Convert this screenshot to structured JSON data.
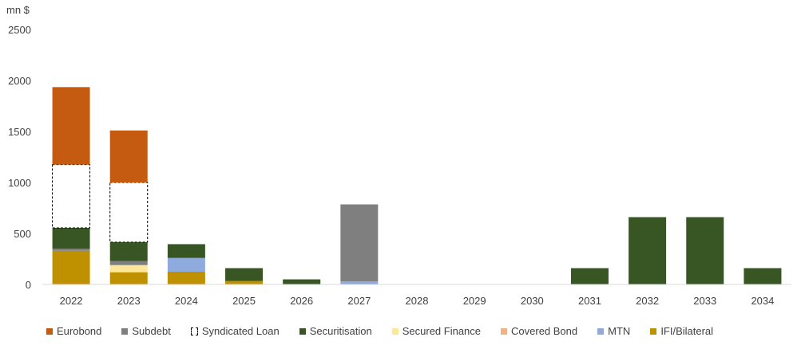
{
  "chart_data": {
    "type": "bar",
    "stacked": true,
    "unit_label": "mn $",
    "categories": [
      "2022",
      "2023",
      "2024",
      "2025",
      "2026",
      "2027",
      "2028",
      "2029",
      "2030",
      "2031",
      "2032",
      "2033",
      "2034"
    ],
    "ylim": [
      0,
      2500
    ],
    "yticks": [
      "0",
      "500",
      "1000",
      "1500",
      "2000",
      "2500"
    ],
    "grid": false,
    "legend_position": "bottom",
    "series": [
      {
        "name": "IFI/Bilateral",
        "color": "#bf9000",
        "values": [
          330,
          120,
          125,
          35,
          0,
          0,
          0,
          0,
          0,
          0,
          0,
          0,
          0
        ]
      },
      {
        "name": "MTN",
        "color": "#8faadc",
        "values": [
          0,
          0,
          135,
          0,
          0,
          30,
          0,
          0,
          0,
          0,
          0,
          0,
          0
        ]
      },
      {
        "name": "Covered Bond",
        "color": "#f4b183",
        "values": [
          0,
          0,
          0,
          0,
          0,
          0,
          0,
          0,
          0,
          0,
          0,
          0,
          0
        ]
      },
      {
        "name": "Secured Finance",
        "color": "#ffe699",
        "values": [
          0,
          70,
          0,
          0,
          0,
          0,
          0,
          0,
          0,
          0,
          0,
          0,
          0
        ]
      },
      {
        "name": "Subdebt",
        "color": "#7f7f7f",
        "values": [
          20,
          40,
          0,
          0,
          0,
          755,
          0,
          0,
          0,
          0,
          0,
          0,
          0
        ]
      },
      {
        "name": "Securitisation",
        "color": "#375623",
        "values": [
          205,
          185,
          135,
          125,
          50,
          0,
          0,
          0,
          0,
          160,
          660,
          660,
          160
        ]
      },
      {
        "name": "Syndicated Loan",
        "color": "#ffffff",
        "dashed": true,
        "values": [
          620,
          585,
          0,
          0,
          0,
          0,
          0,
          0,
          0,
          0,
          0,
          0,
          0
        ]
      },
      {
        "name": "Eurobond",
        "color": "#c55a11",
        "values": [
          760,
          510,
          0,
          0,
          0,
          0,
          0,
          0,
          0,
          0,
          0,
          0,
          0
        ]
      }
    ],
    "legend_order": [
      "Eurobond",
      "Subdebt",
      "Syndicated Loan",
      "Securitisation",
      "Secured Finance",
      "Covered Bond",
      "MTN",
      "IFI/Bilateral"
    ]
  }
}
